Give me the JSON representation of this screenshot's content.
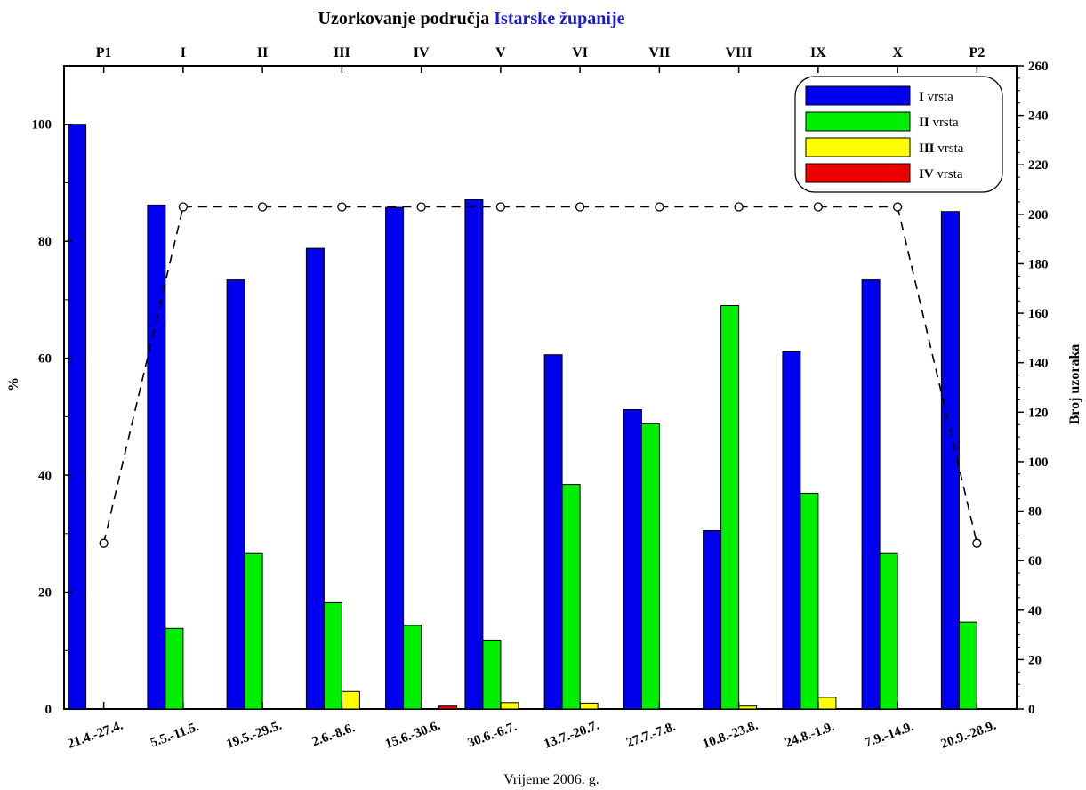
{
  "chart_data": {
    "type": "bar",
    "title": {
      "prefix": "Uzorkovanje područja ",
      "highlight": "Istarske županije",
      "highlight_color": "#1a1ad9"
    },
    "xlabel": "Vrijeme 2006. g.",
    "ylabel_left": "%",
    "ylabel_right": "Broj uzoraka",
    "ylim_left": [
      0,
      110
    ],
    "ylim_right": [
      0,
      260
    ],
    "left_ticks": [
      "0",
      "20",
      "40",
      "60",
      "80",
      "100"
    ],
    "right_ticks": [
      "0",
      "20",
      "40",
      "60",
      "80",
      "100",
      "120",
      "140",
      "160",
      "180",
      "200",
      "220",
      "240",
      "260"
    ],
    "top_categories": [
      "P1",
      "I",
      "II",
      "III",
      "IV",
      "V",
      "VI",
      "VII",
      "VIII",
      "IX",
      "X",
      "P2"
    ],
    "categories": [
      "21.4.-27.4.",
      "5.5.-11.5.",
      "19.5.-29.5.",
      "2.6.-8.6.",
      "15.6.-30.6.",
      "30.6.-6.7.",
      "13.7.-20.7.",
      "27.7.-7.8.",
      "10.8.-23.8.",
      "24.8.-1.9.",
      "7.9.-14.9.",
      "20.9.-28.9."
    ],
    "series": [
      {
        "roman": "I",
        "suffix": " vrsta",
        "color": "#0000ee",
        "values": [
          100,
          86.2,
          73.4,
          78.8,
          85.8,
          87.1,
          60.6,
          51.2,
          30.5,
          61.1,
          73.4,
          85.1
        ]
      },
      {
        "roman": "II",
        "suffix": " vrsta",
        "color": "#00ee00",
        "values": [
          0,
          13.8,
          26.6,
          18.2,
          14.3,
          11.8,
          38.4,
          48.8,
          69.0,
          36.9,
          26.6,
          14.9
        ]
      },
      {
        "roman": "III",
        "suffix": " vrsta",
        "color": "#ffff00",
        "values": [
          0,
          0,
          0,
          3.0,
          0,
          1.1,
          1.0,
          0,
          0.5,
          2.0,
          0,
          0
        ]
      },
      {
        "roman": "IV",
        "suffix": " vrsta",
        "color": "#ee0000",
        "values": [
          0,
          0,
          0,
          0,
          0.5,
          0,
          0,
          0,
          0,
          0,
          0,
          0
        ]
      }
    ],
    "line": {
      "axis": "right",
      "style": "dashed",
      "values": [
        67,
        203,
        203,
        203,
        203,
        203,
        203,
        203,
        203,
        203,
        203,
        67
      ]
    },
    "legend_position": "top-right",
    "grid": false
  }
}
